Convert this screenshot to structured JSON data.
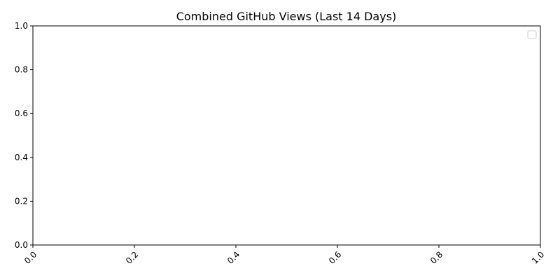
{
  "chart_data": {
    "type": "line",
    "title": "Combined GitHub Views (Last 14 Days)",
    "xlabel": "",
    "ylabel": "",
    "xlim": [
      0.0,
      1.0
    ],
    "ylim": [
      0.0,
      1.0
    ],
    "x_ticks": [
      "0.0",
      "0.2",
      "0.4",
      "0.6",
      "0.8",
      "1.0"
    ],
    "y_ticks": [
      "0.0",
      "0.2",
      "0.4",
      "0.6",
      "0.8",
      "1.0"
    ],
    "x_tick_rotation": 45,
    "grid": false,
    "legend": {
      "placement": "top-right",
      "entries": []
    },
    "series": []
  }
}
